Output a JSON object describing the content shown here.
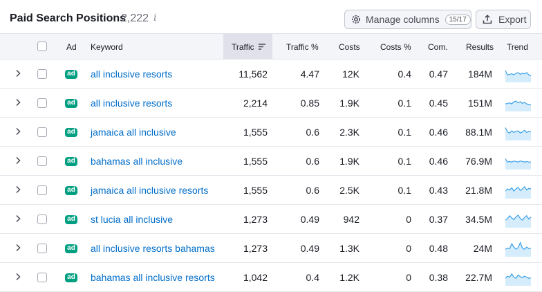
{
  "header": {
    "title": "Paid Search Positions",
    "count": "2,222",
    "info_icon": "info-icon",
    "manage_label": "Manage columns",
    "manage_badge": "15/17",
    "export_label": "Export"
  },
  "columns": {
    "ad": "Ad",
    "keyword": "Keyword",
    "traffic": "Traffic",
    "traffic_pct": "Traffic %",
    "costs": "Costs",
    "costs_pct": "Costs %",
    "com": "Com.",
    "results": "Results",
    "trend": "Trend"
  },
  "rows": [
    {
      "ad": "ad",
      "keyword": "all inclusive resorts",
      "traffic": "11,562",
      "traffic_pct": "4.47",
      "costs": "12K",
      "costs_pct": "0.4",
      "com": "0.47",
      "results": "184M",
      "trend": [
        0.7,
        0.3,
        0.35,
        0.4,
        0.3,
        0.45,
        0.5,
        0.35,
        0.45,
        0.4,
        0.5,
        0.3,
        0.2
      ]
    },
    {
      "ad": "ad",
      "keyword": "all inclusive resorts",
      "traffic": "2,214",
      "traffic_pct": "0.85",
      "costs": "1.9K",
      "costs_pct": "0.1",
      "com": "0.45",
      "results": "151M",
      "trend": [
        0.3,
        0.35,
        0.4,
        0.3,
        0.5,
        0.55,
        0.4,
        0.5,
        0.35,
        0.45,
        0.3,
        0.25,
        0.2
      ]
    },
    {
      "ad": "ad",
      "keyword": "jamaica all inclusive",
      "traffic": "1,555",
      "traffic_pct": "0.6",
      "costs": "2.3K",
      "costs_pct": "0.1",
      "com": "0.46",
      "results": "88.1M",
      "trend": [
        0.8,
        0.4,
        0.3,
        0.5,
        0.35,
        0.45,
        0.5,
        0.3,
        0.4,
        0.55,
        0.35,
        0.45,
        0.4
      ]
    },
    {
      "ad": "ad",
      "keyword": "bahamas all inclusive",
      "traffic": "1,555",
      "traffic_pct": "0.6",
      "costs": "1.9K",
      "costs_pct": "0.1",
      "com": "0.46",
      "results": "76.9M",
      "trend": [
        0.6,
        0.3,
        0.35,
        0.3,
        0.4,
        0.35,
        0.3,
        0.4,
        0.35,
        0.3,
        0.35,
        0.3,
        0.3
      ]
    },
    {
      "ad": "ad",
      "keyword": "jamaica all inclusive resorts",
      "traffic": "1,555",
      "traffic_pct": "0.6",
      "costs": "2.5K",
      "costs_pct": "0.1",
      "com": "0.43",
      "results": "21.8M",
      "trend": [
        0.3,
        0.5,
        0.4,
        0.6,
        0.3,
        0.5,
        0.65,
        0.35,
        0.5,
        0.7,
        0.4,
        0.55,
        0.5
      ]
    },
    {
      "ad": "ad",
      "keyword": "st lucia all inclusive",
      "traffic": "1,273",
      "traffic_pct": "0.49",
      "costs": "942",
      "costs_pct": "0",
      "com": "0.37",
      "results": "34.5M",
      "trend": [
        0.3,
        0.45,
        0.7,
        0.5,
        0.35,
        0.6,
        0.75,
        0.45,
        0.3,
        0.55,
        0.7,
        0.4,
        0.6
      ]
    },
    {
      "ad": "ad",
      "keyword": "all inclusive resorts bahamas",
      "traffic": "1,273",
      "traffic_pct": "0.49",
      "costs": "1.3K",
      "costs_pct": "0",
      "com": "0.48",
      "results": "24M",
      "trend": [
        0.3,
        0.4,
        0.35,
        0.8,
        0.5,
        0.3,
        0.45,
        0.9,
        0.4,
        0.3,
        0.5,
        0.35,
        0.4
      ]
    },
    {
      "ad": "ad",
      "keyword": "bahamas all inclusive resorts",
      "traffic": "1,042",
      "traffic_pct": "0.4",
      "costs": "1.2K",
      "costs_pct": "0",
      "com": "0.38",
      "results": "22.7M",
      "trend": [
        0.3,
        0.5,
        0.4,
        0.7,
        0.4,
        0.3,
        0.6,
        0.45,
        0.35,
        0.5,
        0.4,
        0.3,
        0.35
      ]
    }
  ]
}
